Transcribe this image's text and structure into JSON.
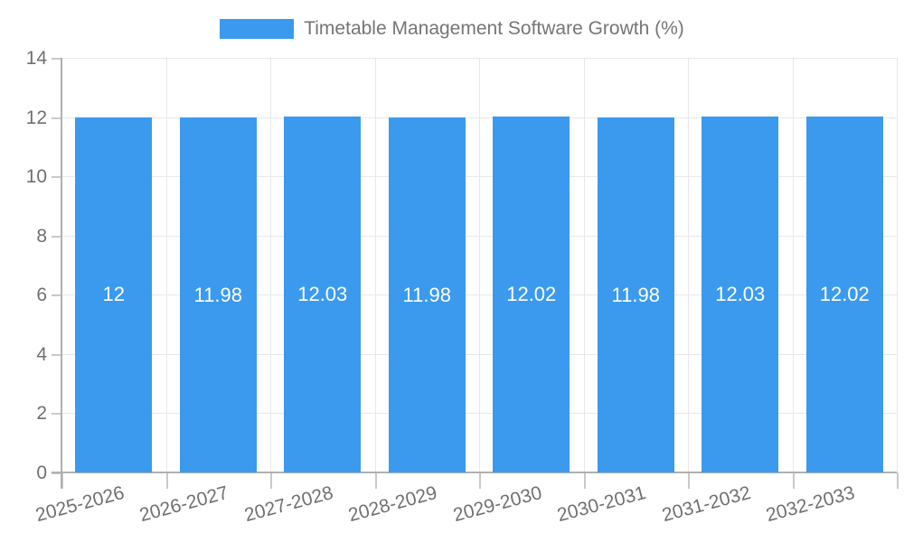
{
  "chart_data": {
    "type": "bar",
    "title": "Timetable Management Software Growth (%)",
    "categories": [
      "2025-2026",
      "2026-2027",
      "2027-2028",
      "2028-2029",
      "2029-2030",
      "2030-2031",
      "2031-2032",
      "2032-2033"
    ],
    "values": [
      12,
      11.98,
      12.03,
      11.98,
      12.02,
      11.98,
      12.03,
      12.02
    ],
    "bar_value_labels": [
      "12",
      "11.98",
      "12.03",
      "11.98",
      "12.02",
      "11.98",
      "12.03",
      "12.02"
    ],
    "ylim": [
      0,
      14
    ],
    "yticks": [
      0,
      2,
      4,
      6,
      8,
      10,
      12,
      14
    ],
    "grid": true,
    "legend_position": "top",
    "colors": {
      "bar": "#3b9aee",
      "bar_label_text": "#ffffff",
      "axis_text": "#707070",
      "title_text": "#757575",
      "gridline": "#e8e8e8",
      "axis_line": "#b0b0b0",
      "tick_mark": "#c9c9c9",
      "background": "#ffffff"
    }
  }
}
